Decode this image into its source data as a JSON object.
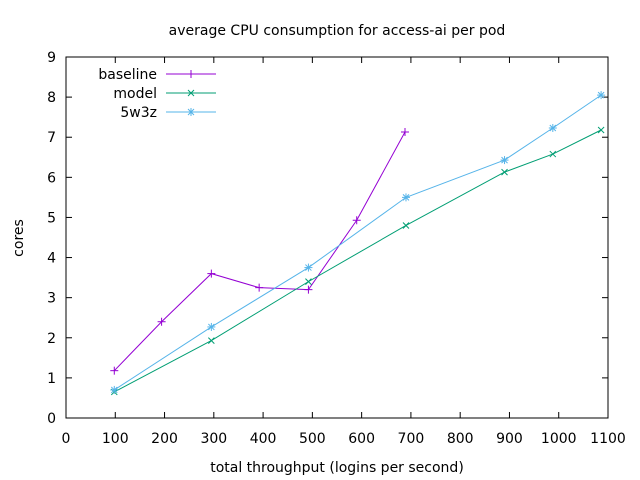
{
  "chart_data": {
    "type": "line",
    "title": "average CPU consumption for access-ai per pod",
    "xlabel": "total throughput (logins per second)",
    "ylabel": "cores",
    "xlim": [
      0,
      1100
    ],
    "ylim": [
      0,
      9
    ],
    "xticks": [
      "0",
      "100",
      "200",
      "300",
      "400",
      "500",
      "600",
      "700",
      "800",
      "900",
      "1000",
      "1100"
    ],
    "yticks": [
      "0",
      "1",
      "2",
      "3",
      "4",
      "5",
      "6",
      "7",
      "8",
      "9"
    ],
    "legend_position": "top-left",
    "series": [
      {
        "name": "baseline",
        "color": "#9400d3",
        "marker": "plus",
        "points": [
          [
            98,
            1.18
          ],
          [
            194,
            2.4
          ],
          [
            295,
            3.6
          ],
          [
            392,
            3.25
          ],
          [
            492,
            3.2
          ],
          [
            590,
            4.93
          ],
          [
            688,
            7.13
          ]
        ]
      },
      {
        "name": "model",
        "color": "#009e73",
        "marker": "cross",
        "points": [
          [
            98,
            0.65
          ],
          [
            295,
            1.93
          ],
          [
            492,
            3.4
          ],
          [
            690,
            4.8
          ],
          [
            890,
            6.13
          ],
          [
            988,
            6.58
          ],
          [
            1086,
            7.18
          ]
        ]
      },
      {
        "name": "5w3z",
        "color": "#56b4e9",
        "marker": "star",
        "points": [
          [
            98,
            0.7
          ],
          [
            295,
            2.27
          ],
          [
            492,
            3.75
          ],
          [
            690,
            5.5
          ],
          [
            890,
            6.43
          ],
          [
            988,
            7.23
          ],
          [
            1086,
            8.05
          ]
        ]
      }
    ]
  }
}
